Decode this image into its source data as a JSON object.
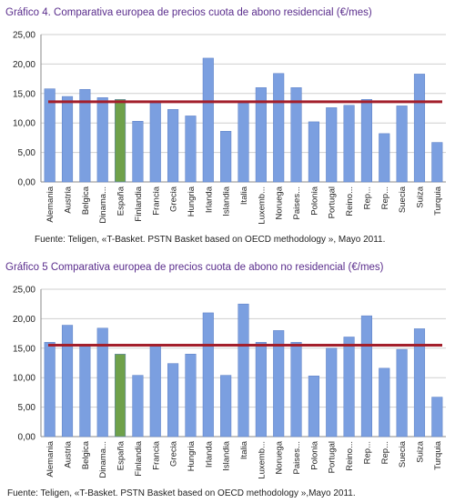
{
  "chart_data": [
    {
      "type": "bar",
      "title": "Gráfico 4. Comparativa europea de precios cuota de abono residencial (€/mes)",
      "source": "Fuente: Teligen, «T-Basket. PSTN Basket based on OECD methodology », Mayo 2011.",
      "categories": [
        "Alemania",
        "Austria",
        "Belgica",
        "Dinama...",
        "España",
        "Finlandia",
        "Francia",
        "Grecia",
        "Hungria",
        "Irlanda",
        "Islandia",
        "Italia",
        "Luxemb...",
        "Noruega",
        "Paises...",
        "Polonia",
        "Portugal",
        "Reino...",
        "Rep...",
        "Rep...",
        "Suecia",
        "Suiza",
        "Turquia"
      ],
      "values": [
        15.8,
        14.5,
        15.7,
        14.3,
        14.0,
        10.3,
        13.4,
        12.3,
        11.2,
        21.0,
        8.6,
        13.4,
        16.0,
        18.4,
        16.0,
        10.2,
        12.6,
        13.0,
        14.0,
        8.2,
        12.9,
        18.3,
        6.7
      ],
      "highlight_index": 4,
      "reference_line": 13.6,
      "ylim": [
        0,
        25
      ],
      "yticks": [
        "0,00",
        "5,00",
        "10,00",
        "15,00",
        "20,00",
        "25,00"
      ],
      "grid": true,
      "colors": {
        "bar": "#7b9fe0",
        "highlight": "#6fa14a",
        "line": "#a31f2b"
      }
    },
    {
      "type": "bar",
      "title": "Gráfico 5 Comparativa europea de precios cuota de abono no residencial (€/mes)",
      "source": "Fuente: Teligen, «T-Basket. PSTN Basket based on OECD methodology »,Mayo 2011.",
      "categories": [
        "Alemania",
        "Austria",
        "Belgica",
        "Dinama...",
        "España",
        "Finlandia",
        "Francia",
        "Grecia",
        "Hungria",
        "Irlanda",
        "Islandia",
        "Italia",
        "Luxemb...",
        "Noruega",
        "Paises...",
        "Polonia",
        "Portugal",
        "Reino...",
        "Rep...",
        "Rep...",
        "Suecia",
        "Suiza",
        "Turquia"
      ],
      "values": [
        16.0,
        18.9,
        15.5,
        18.4,
        14.0,
        10.4,
        15.5,
        12.4,
        14.0,
        21.0,
        10.4,
        22.5,
        16.0,
        18.0,
        16.0,
        10.3,
        15.0,
        16.9,
        20.5,
        11.6,
        14.8,
        18.3,
        6.7
      ],
      "highlight_index": 4,
      "reference_line": 15.5,
      "ylim": [
        0,
        25
      ],
      "yticks": [
        "0,00",
        "5,00",
        "10,00",
        "15,00",
        "20,00",
        "25,00"
      ],
      "grid": true,
      "colors": {
        "bar": "#7b9fe0",
        "highlight": "#6fa14a",
        "line": "#a31f2b"
      }
    }
  ]
}
